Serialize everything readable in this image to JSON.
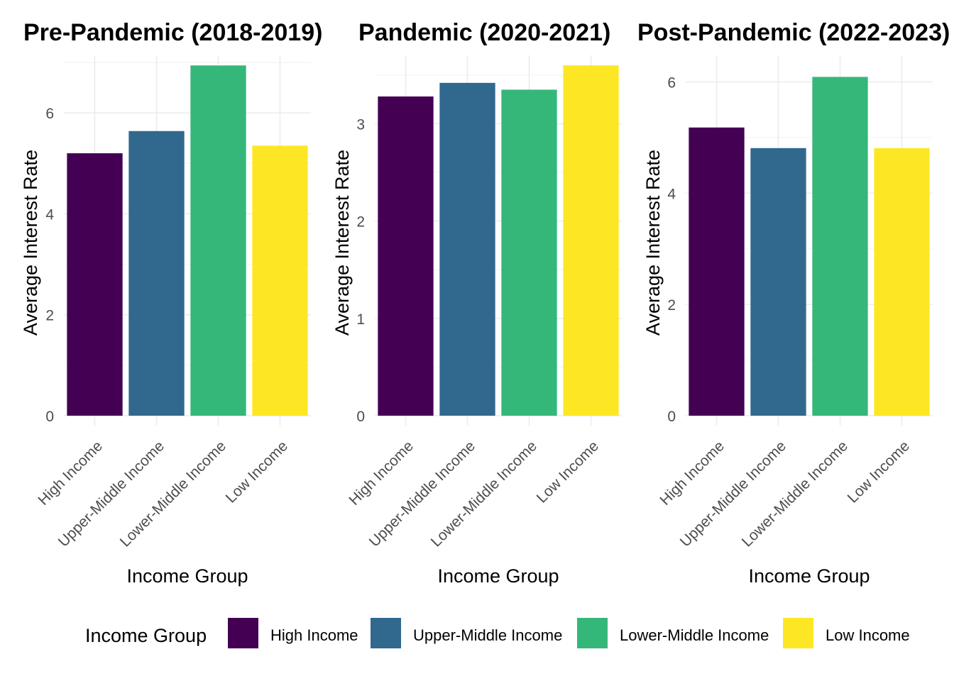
{
  "chart_data": [
    {
      "type": "bar",
      "title": "Pre-Pandemic (2018-2019)",
      "xlabel": "Income Group",
      "ylabel": "Average Interest Rate",
      "categories": [
        "High Income",
        "Upper-Middle Income",
        "Lower-Middle Income",
        "Low Income"
      ],
      "values": [
        5.2,
        5.64,
        6.94,
        5.35
      ],
      "ylim": [
        0,
        7.0
      ],
      "yticks": [
        0,
        2,
        4,
        6
      ],
      "grid": true
    },
    {
      "type": "bar",
      "title": "Pandemic (2020-2021)",
      "xlabel": "Income Group",
      "ylabel": "Average Interest Rate",
      "categories": [
        "High Income",
        "Upper-Middle Income",
        "Lower-Middle Income",
        "Low Income"
      ],
      "values": [
        3.28,
        3.42,
        3.35,
        3.6
      ],
      "ylim": [
        0,
        3.63
      ],
      "yticks": [
        0,
        1,
        2,
        3
      ],
      "grid": true
    },
    {
      "type": "bar",
      "title": "Post-Pandemic (2022-2023)",
      "xlabel": "Income Group",
      "ylabel": "Average Interest Rate",
      "categories": [
        "High Income",
        "Upper-Middle Income",
        "Lower-Middle Income",
        "Low Income"
      ],
      "values": [
        5.18,
        4.81,
        6.09,
        4.81
      ],
      "ylim": [
        0,
        6.35
      ],
      "yticks": [
        0,
        2,
        4,
        6
      ],
      "grid": true
    }
  ],
  "legend": {
    "title": "Income Group",
    "position": "bottom",
    "items": [
      {
        "label": "High Income",
        "color": "#440154"
      },
      {
        "label": "Upper-Middle Income",
        "color": "#31688E"
      },
      {
        "label": "Lower-Middle Income",
        "color": "#35B779"
      },
      {
        "label": "Low Income",
        "color": "#FDE725"
      }
    ]
  }
}
